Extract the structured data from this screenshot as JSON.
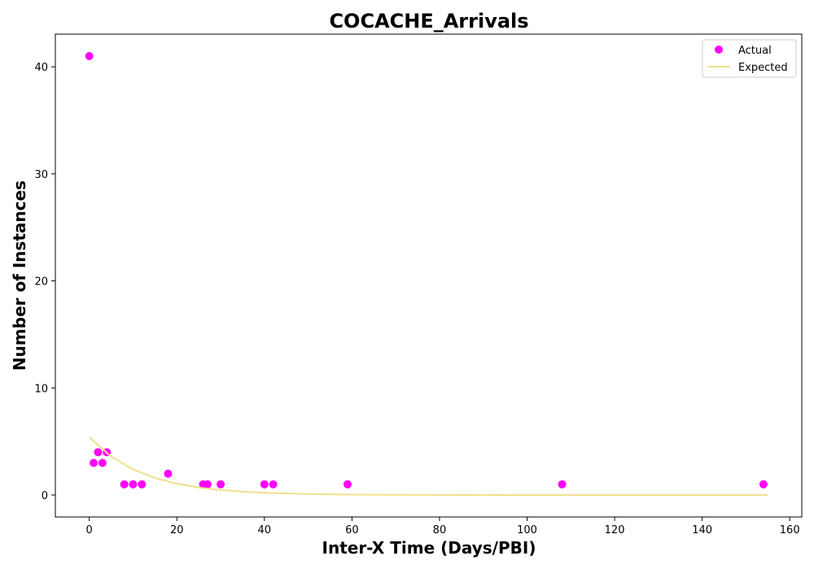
{
  "chart_data": {
    "type": "scatter",
    "title": "COCACHE_Arrivals",
    "xlabel": "Inter-X Time (Days/PBI)",
    "ylabel": "Number of Instances",
    "xlim": [
      -7.75,
      162.75
    ],
    "ylim": [
      -2.05,
      43.05
    ],
    "xticks": [
      0,
      20,
      40,
      60,
      80,
      100,
      120,
      140,
      160
    ],
    "yticks": [
      0,
      10,
      20,
      30,
      40
    ],
    "grid": false,
    "legend_position": "top-right",
    "series": [
      {
        "name": "Actual",
        "kind": "scatter",
        "color": "#ff00ff",
        "points": [
          {
            "x": 0,
            "y": 41
          },
          {
            "x": 1,
            "y": 3
          },
          {
            "x": 2,
            "y": 4
          },
          {
            "x": 3,
            "y": 3
          },
          {
            "x": 4,
            "y": 4
          },
          {
            "x": 8,
            "y": 1
          },
          {
            "x": 10,
            "y": 1
          },
          {
            "x": 12,
            "y": 1
          },
          {
            "x": 18,
            "y": 2
          },
          {
            "x": 26,
            "y": 1
          },
          {
            "x": 27,
            "y": 1
          },
          {
            "x": 30,
            "y": 1
          },
          {
            "x": 40,
            "y": 1
          },
          {
            "x": 42,
            "y": 1
          },
          {
            "x": 59,
            "y": 1
          },
          {
            "x": 108,
            "y": 1
          },
          {
            "x": 154,
            "y": 1
          }
        ]
      },
      {
        "name": "Expected",
        "kind": "line",
        "color": "#f0e08c",
        "points": [
          {
            "x": 0,
            "y": 5.4
          },
          {
            "x": 5,
            "y": 3.59
          },
          {
            "x": 10,
            "y": 2.39
          },
          {
            "x": 15,
            "y": 1.59
          },
          {
            "x": 20,
            "y": 1.06
          },
          {
            "x": 25,
            "y": 0.7
          },
          {
            "x": 30,
            "y": 0.47
          },
          {
            "x": 35,
            "y": 0.31
          },
          {
            "x": 40,
            "y": 0.21
          },
          {
            "x": 50,
            "y": 0.09
          },
          {
            "x": 60,
            "y": 0.04
          },
          {
            "x": 70,
            "y": 0.02
          },
          {
            "x": 80,
            "y": 0.01
          },
          {
            "x": 100,
            "y": 0.0
          },
          {
            "x": 130,
            "y": 0.0
          },
          {
            "x": 155,
            "y": 0.0
          }
        ]
      }
    ]
  }
}
